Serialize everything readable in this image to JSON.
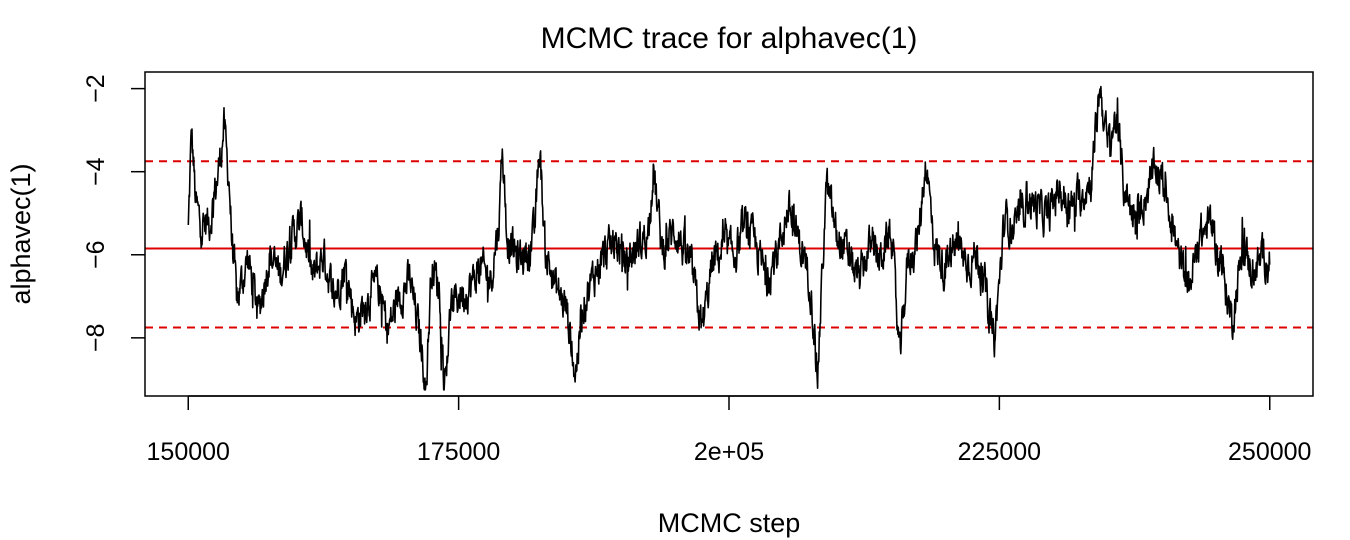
{
  "chart_data": {
    "type": "line",
    "title": "MCMC trace for alphavec(1)",
    "xlabel": "MCMC step",
    "ylabel": "alphavec(1)",
    "xlim": [
      146000,
      254000
    ],
    "ylim": [
      -9.4,
      -1.6
    ],
    "x_ticks": [
      {
        "value": 150000,
        "label": "150000"
      },
      {
        "value": 175000,
        "label": "175000"
      },
      {
        "value": 200000,
        "label": "2e+05"
      },
      {
        "value": 225000,
        "label": "225000"
      },
      {
        "value": 250000,
        "label": "250000"
      }
    ],
    "y_ticks": [
      {
        "value": -2,
        "label": "−2"
      },
      {
        "value": -4,
        "label": "−4"
      },
      {
        "value": -6,
        "label": "−6"
      },
      {
        "value": -8,
        "label": "−8"
      }
    ],
    "reference_lines": [
      {
        "value": -5.85,
        "style": "solid",
        "color": "#dd0000"
      },
      {
        "value": -3.75,
        "style": "dashed",
        "color": "#dd0000"
      },
      {
        "value": -7.75,
        "style": "dashed",
        "color": "#dd0000"
      }
    ],
    "series": [
      {
        "color": "#000000",
        "x_start": 150000,
        "x_end": 250000,
        "anchors": [
          [
            150000,
            -5.4
          ],
          [
            150300,
            -3.0
          ],
          [
            150700,
            -4.8
          ],
          [
            151200,
            -5.3
          ],
          [
            152000,
            -5.2
          ],
          [
            152800,
            -4.0
          ],
          [
            153300,
            -2.9
          ],
          [
            153800,
            -4.3
          ],
          [
            154000,
            -5.5
          ],
          [
            154500,
            -7.1
          ],
          [
            155500,
            -6.1
          ],
          [
            156500,
            -7.4
          ],
          [
            157500,
            -6.0
          ],
          [
            158500,
            -6.5
          ],
          [
            159500,
            -5.6
          ],
          [
            160500,
            -5.2
          ],
          [
            161500,
            -6.6
          ],
          [
            162500,
            -6.0
          ],
          [
            163500,
            -7.0
          ],
          [
            164500,
            -6.3
          ],
          [
            165500,
            -7.6
          ],
          [
            166500,
            -7.1
          ],
          [
            167500,
            -6.7
          ],
          [
            168500,
            -7.8
          ],
          [
            169500,
            -7.0
          ],
          [
            170500,
            -6.6
          ],
          [
            171500,
            -8.1
          ],
          [
            172000,
            -9.2
          ],
          [
            172500,
            -6.2
          ],
          [
            173200,
            -6.8
          ],
          [
            173700,
            -9.2
          ],
          [
            174300,
            -7.2
          ],
          [
            175000,
            -7.0
          ],
          [
            176000,
            -6.8
          ],
          [
            177000,
            -6.3
          ],
          [
            178000,
            -6.6
          ],
          [
            178800,
            -5.0
          ],
          [
            179000,
            -3.3
          ],
          [
            179500,
            -5.6
          ],
          [
            180500,
            -6.1
          ],
          [
            181500,
            -5.9
          ],
          [
            182000,
            -5.5
          ],
          [
            182500,
            -3.4
          ],
          [
            183000,
            -5.9
          ],
          [
            184000,
            -6.8
          ],
          [
            185000,
            -7.3
          ],
          [
            185800,
            -8.9
          ],
          [
            186500,
            -7.2
          ],
          [
            187500,
            -6.5
          ],
          [
            188500,
            -6.0
          ],
          [
            189500,
            -5.7
          ],
          [
            190500,
            -6.2
          ],
          [
            191500,
            -5.8
          ],
          [
            192500,
            -5.5
          ],
          [
            193000,
            -3.9
          ],
          [
            193800,
            -5.9
          ],
          [
            195000,
            -5.4
          ],
          [
            196500,
            -6.3
          ],
          [
            197500,
            -7.8
          ],
          [
            198500,
            -6.2
          ],
          [
            199500,
            -5.8
          ],
          [
            200500,
            -6.0
          ],
          [
            201500,
            -5.3
          ],
          [
            202500,
            -5.8
          ],
          [
            203500,
            -6.6
          ],
          [
            204500,
            -5.9
          ],
          [
            205500,
            -4.9
          ],
          [
            206500,
            -5.7
          ],
          [
            207500,
            -6.6
          ],
          [
            208200,
            -8.9
          ],
          [
            209000,
            -4.3
          ],
          [
            210000,
            -5.6
          ],
          [
            211000,
            -6.0
          ],
          [
            212000,
            -6.6
          ],
          [
            213000,
            -5.8
          ],
          [
            214000,
            -6.1
          ],
          [
            215000,
            -5.4
          ],
          [
            215800,
            -8.5
          ],
          [
            216500,
            -6.2
          ],
          [
            217500,
            -5.6
          ],
          [
            218200,
            -3.7
          ],
          [
            219000,
            -5.8
          ],
          [
            220000,
            -6.4
          ],
          [
            221000,
            -5.7
          ],
          [
            222000,
            -6.2
          ],
          [
            223000,
            -6.0
          ],
          [
            224000,
            -7.2
          ],
          [
            224500,
            -8.2
          ],
          [
            225500,
            -5.1
          ],
          [
            226500,
            -5.4
          ],
          [
            227500,
            -4.6
          ],
          [
            228500,
            -4.9
          ],
          [
            229500,
            -5.1
          ],
          [
            230500,
            -4.4
          ],
          [
            231500,
            -4.9
          ],
          [
            232500,
            -4.6
          ],
          [
            233500,
            -4.2
          ],
          [
            234300,
            -1.9
          ],
          [
            235000,
            -3.4
          ],
          [
            235800,
            -2.7
          ],
          [
            236500,
            -4.3
          ],
          [
            237500,
            -5.2
          ],
          [
            238500,
            -4.6
          ],
          [
            239500,
            -3.9
          ],
          [
            240500,
            -4.5
          ],
          [
            241500,
            -6.0
          ],
          [
            242500,
            -6.8
          ],
          [
            243500,
            -5.6
          ],
          [
            244500,
            -5.2
          ],
          [
            245500,
            -6.2
          ],
          [
            246500,
            -7.6
          ],
          [
            247500,
            -5.9
          ],
          [
            248500,
            -6.4
          ],
          [
            249500,
            -6.0
          ],
          [
            250000,
            -6.2
          ]
        ]
      }
    ]
  }
}
